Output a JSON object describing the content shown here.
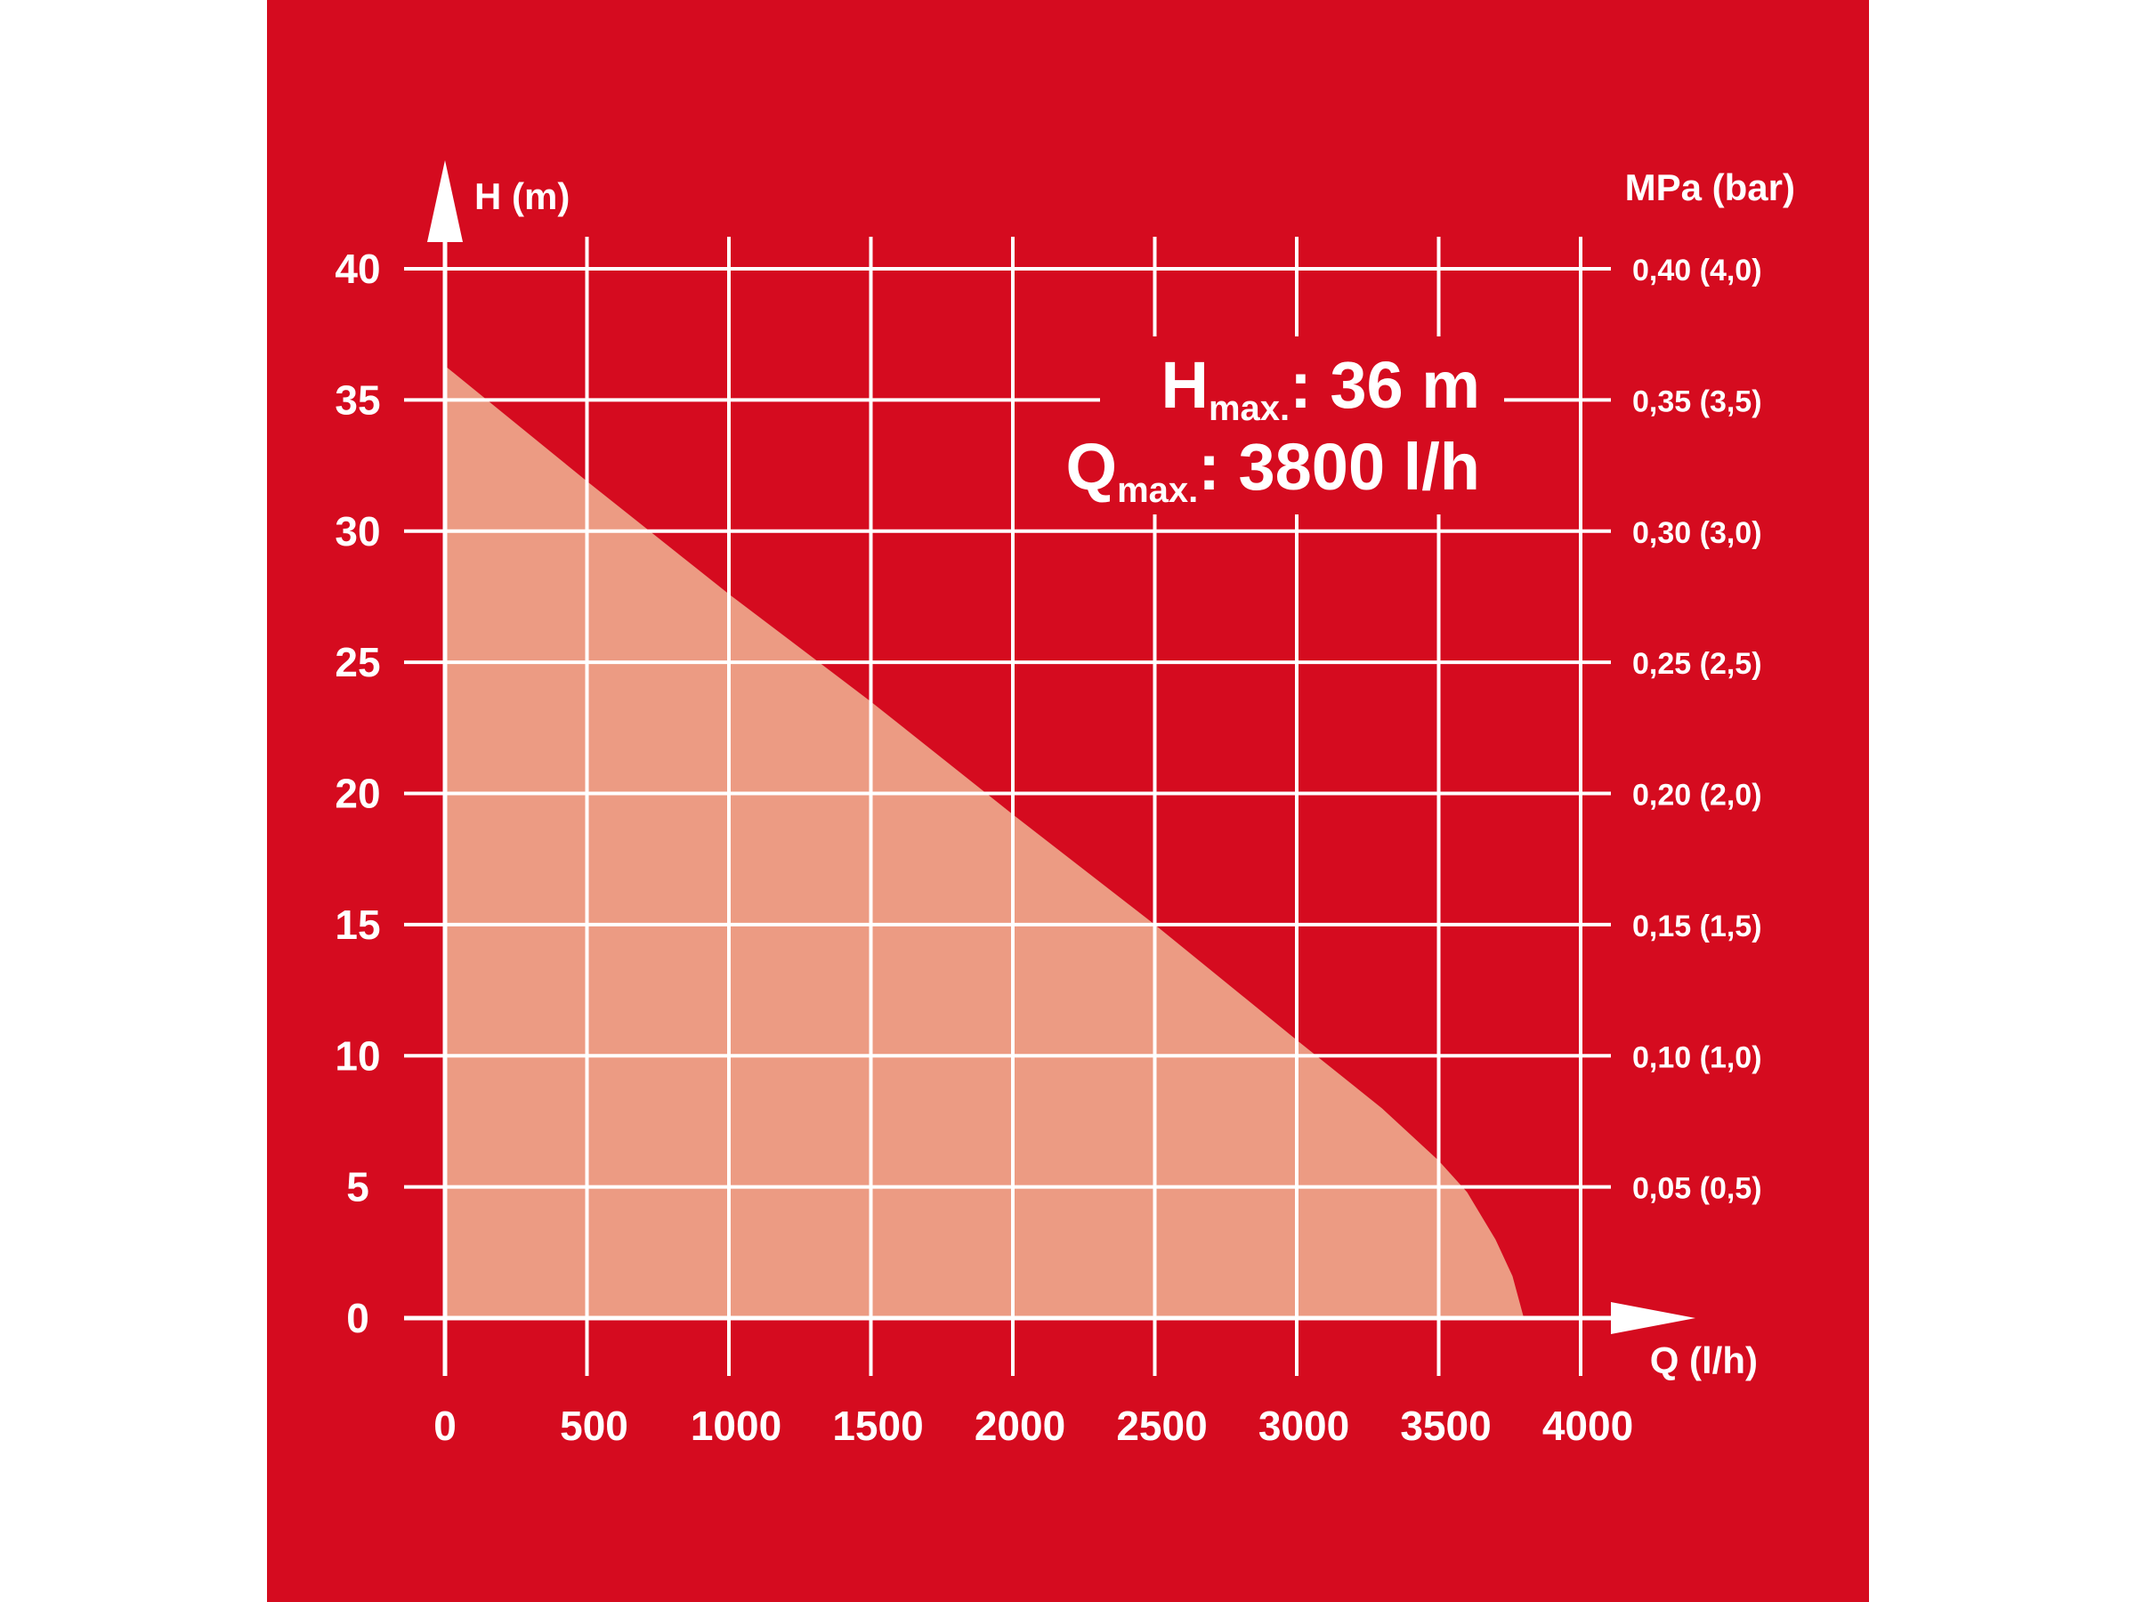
{
  "colors": {
    "outer_background": "#ffffff",
    "panel": "#d50b1f",
    "curve_fill": "#ec9b83",
    "lines_and_text": "#ffffff"
  },
  "chart_data": {
    "type": "area",
    "y_axis_label": "H (m)",
    "x_axis_label": "Q (l/h)",
    "right_axis_label": "MPa (bar)",
    "x_ticks": [
      "0",
      "500",
      "1000",
      "1500",
      "2000",
      "2500",
      "3000",
      "3500",
      "4000"
    ],
    "y_ticks": [
      "0",
      "5",
      "10",
      "15",
      "20",
      "25",
      "30",
      "35",
      "40"
    ],
    "right_ticks": [
      "0,05 (0,5)",
      "0,10 (1,0)",
      "0,15 (1,5)",
      "0,20 (2,0)",
      "0,25 (2,5)",
      "0,30 (3,0)",
      "0,35 (3,5)",
      "0,40 (4,0)"
    ],
    "xlim": [
      0,
      4000
    ],
    "ylim": [
      0,
      40
    ],
    "grid": true,
    "x_tick_values": [
      0,
      500,
      1000,
      1500,
      2000,
      2500,
      3000,
      3500,
      4000
    ],
    "y_tick_values": [
      0,
      5,
      10,
      15,
      20,
      25,
      30,
      35,
      40
    ],
    "right_tick_values": [
      5,
      10,
      15,
      20,
      25,
      30,
      35,
      40
    ],
    "series": [
      {
        "x": [
          0,
          500,
          1000,
          1500,
          2000,
          2500,
          3000,
          3300,
          3500,
          3600,
          3700,
          3760,
          3800
        ],
        "y": [
          36.3,
          31.9,
          27.6,
          23.5,
          19.2,
          15.0,
          10.6,
          8.0,
          6.0,
          4.8,
          3.0,
          1.6,
          0
        ]
      }
    ],
    "annotations": {
      "hmax_letter": "H",
      "hmax_sub": "max.",
      "hmax_value": ": 36 m",
      "qmax_letter": "Q",
      "qmax_sub": "max.",
      "qmax_value": ": 3800 l/h"
    }
  }
}
